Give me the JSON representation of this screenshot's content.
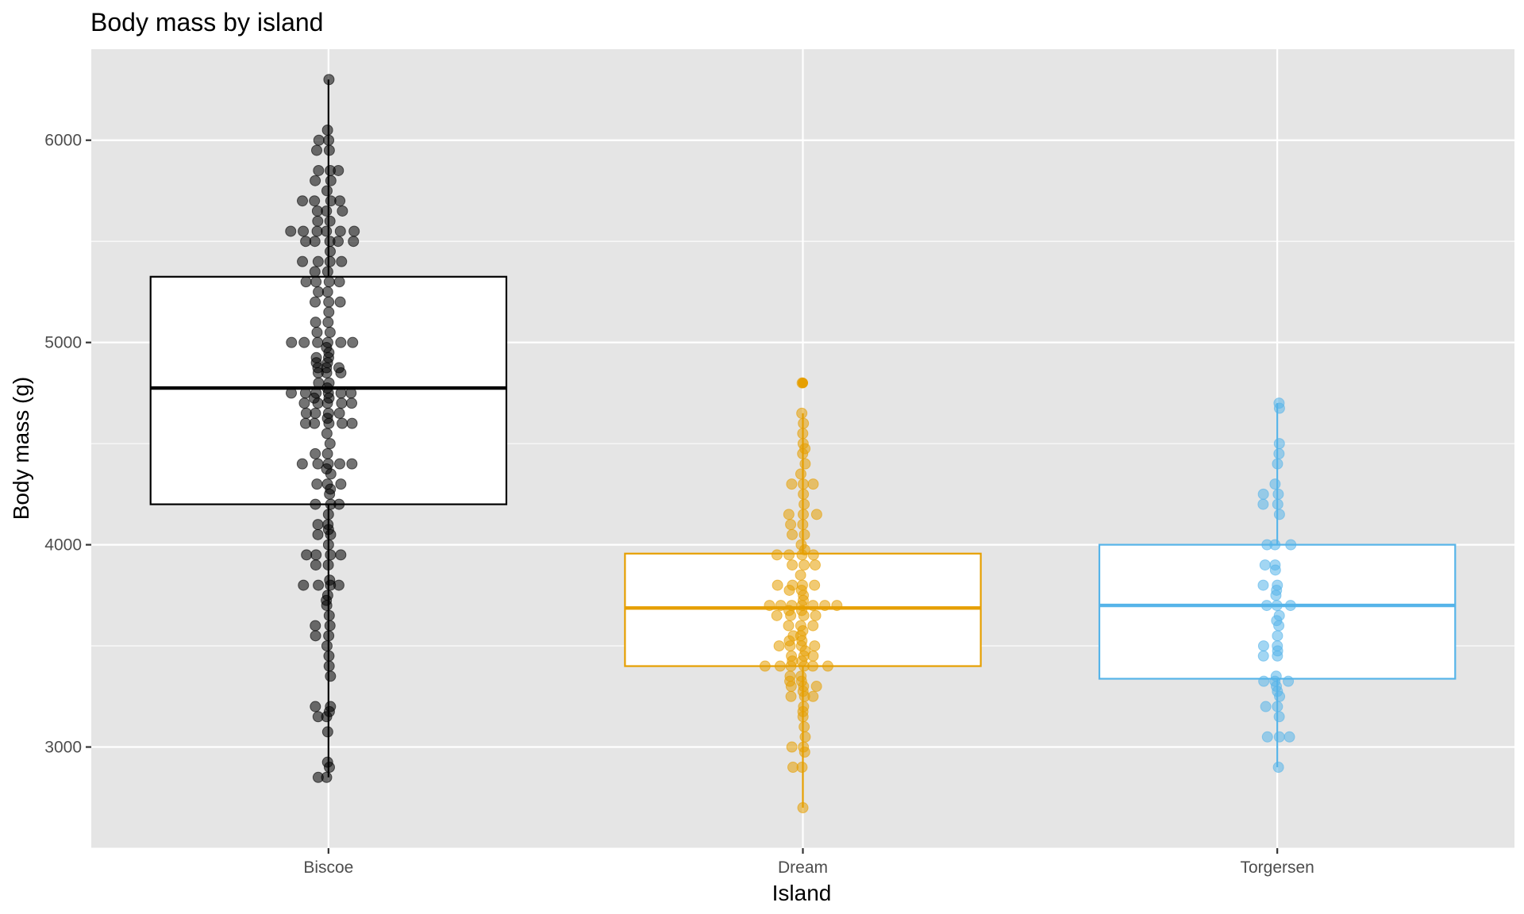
{
  "chart_data": {
    "type": "boxplot",
    "title": "Body mass by island",
    "xlabel": "Island",
    "ylabel": "Body mass (g)",
    "ylim": [
      2500,
      6450
    ],
    "yticks": [
      3000,
      4000,
      5000,
      6000
    ],
    "grid": true,
    "legend": "none",
    "categories": [
      "Biscoe",
      "Dream",
      "Torgersen"
    ],
    "series": [
      {
        "category": "Biscoe",
        "color": "#000000",
        "box": {
          "min": 2850,
          "q1": 4200,
          "median": 4775,
          "q3": 5325,
          "max": 6300,
          "outliers": []
        },
        "points": [
          6300,
          6050,
          6000,
          6000,
          5950,
          5950,
          5850,
          5850,
          5850,
          5800,
          5800,
          5750,
          5700,
          5700,
          5700,
          5700,
          5650,
          5650,
          5650,
          5600,
          5600,
          5550,
          5550,
          5550,
          5550,
          5550,
          5550,
          5500,
          5500,
          5500,
          5500,
          5500,
          5450,
          5400,
          5400,
          5400,
          5400,
          5350,
          5350,
          5300,
          5300,
          5300,
          5300,
          5250,
          5250,
          5200,
          5200,
          5200,
          5150,
          5100,
          5100,
          5050,
          5050,
          5000,
          5000,
          5000,
          5000,
          5000,
          5000,
          4975,
          4950,
          4925,
          4925,
          4900,
          4900,
          4875,
          4875,
          4875,
          4850,
          4850,
          4850,
          4800,
          4800,
          4775,
          4750,
          4750,
          4750,
          4750,
          4750,
          4750,
          4725,
          4725,
          4700,
          4700,
          4700,
          4700,
          4700,
          4650,
          4650,
          4650,
          4650,
          4625,
          4600,
          4600,
          4600,
          4600,
          4600,
          4550,
          4500,
          4450,
          4450,
          4400,
          4400,
          4400,
          4400,
          4400,
          4375,
          4350,
          4300,
          4300,
          4300,
          4275,
          4250,
          4200,
          4200,
          4200,
          4150,
          4100,
          4100,
          4075,
          4050,
          4050,
          4000,
          3950,
          3950,
          3950,
          3950,
          3900,
          3900,
          3825,
          3800,
          3800,
          3800,
          3800,
          3750,
          3725,
          3700,
          3650,
          3600,
          3600,
          3550,
          3550,
          3500,
          3450,
          3400,
          3350,
          3200,
          3200,
          3175,
          3150,
          3150,
          3075,
          2925,
          2900,
          2850,
          2850
        ]
      },
      {
        "category": "Dream",
        "color": "#e69f00",
        "box": {
          "min": 2700,
          "q1": 3400,
          "median": 3687.5,
          "q3": 3956.25,
          "max": 4650,
          "outliers": [
            4800
          ]
        },
        "points": [
          4800,
          4650,
          4600,
          4550,
          4500,
          4475,
          4450,
          4400,
          4350,
          4300,
          4300,
          4300,
          4250,
          4200,
          4150,
          4150,
          4150,
          4100,
          4100,
          4050,
          4050,
          4000,
          3975,
          3950,
          3950,
          3950,
          3950,
          3900,
          3900,
          3900,
          3850,
          3800,
          3800,
          3800,
          3800,
          3775,
          3775,
          3750,
          3725,
          3700,
          3700,
          3700,
          3700,
          3700,
          3700,
          3700,
          3675,
          3675,
          3650,
          3650,
          3650,
          3650,
          3600,
          3600,
          3600,
          3575,
          3550,
          3550,
          3525,
          3525,
          3500,
          3500,
          3500,
          3500,
          3475,
          3450,
          3450,
          3450,
          3425,
          3425,
          3400,
          3400,
          3400,
          3400,
          3400,
          3400,
          3350,
          3350,
          3325,
          3325,
          3300,
          3300,
          3300,
          3275,
          3250,
          3250,
          3250,
          3200,
          3175,
          3150,
          3100,
          3050,
          3000,
          3000,
          2975,
          2900,
          2900,
          2700
        ]
      },
      {
        "category": "Torgersen",
        "color": "#56b4e9",
        "box": {
          "min": 2900,
          "q1": 3337.5,
          "median": 3700,
          "q3": 4000,
          "max": 4700,
          "outliers": []
        },
        "points": [
          4700,
          4675,
          4500,
          4450,
          4400,
          4300,
          4250,
          4250,
          4200,
          4200,
          4150,
          4000,
          4000,
          4000,
          3900,
          3900,
          3875,
          3800,
          3800,
          3775,
          3750,
          3700,
          3700,
          3700,
          3650,
          3625,
          3600,
          3550,
          3500,
          3500,
          3475,
          3450,
          3450,
          3350,
          3325,
          3325,
          3325,
          3300,
          3275,
          3250,
          3200,
          3200,
          3150,
          3050,
          3050,
          3050,
          2900
        ]
      }
    ]
  }
}
